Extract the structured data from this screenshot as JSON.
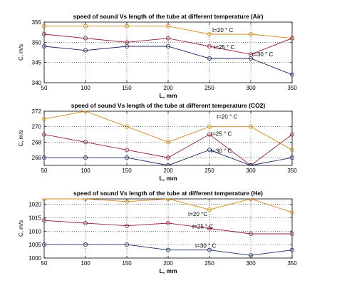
{
  "chart_data": [
    {
      "type": "line",
      "title": "speed of sound Vs  length of the tube at different temperature (Air)",
      "xlabel": "L, mm",
      "ylabel": "C, m/s",
      "x": [
        50,
        100,
        150,
        200,
        250,
        300,
        350
      ],
      "xticks": [
        "50",
        "100",
        "150",
        "200",
        "250",
        "300",
        "350"
      ],
      "xlim": [
        50,
        350
      ],
      "ylim": [
        340,
        355
      ],
      "yticks": [
        340,
        345,
        350,
        355
      ],
      "grid": true,
      "series": [
        {
          "label": "t=20 ° C",
          "color": "#d08a1c",
          "values": [
            354,
            354,
            354,
            354,
            352,
            352,
            351
          ]
        },
        {
          "label": "t=25 ° C",
          "color": "#8e1f34",
          "values": [
            352,
            351,
            350,
            351,
            349,
            347,
            351
          ]
        },
        {
          "label": "t=30 ° C",
          "color": "#1c2a66",
          "values": [
            349,
            348,
            349,
            349,
            346,
            346,
            342
          ]
        }
      ]
    },
    {
      "type": "line",
      "title": "speed of sound Vs  length of the tube at different temperature (CO2)",
      "xlabel": "L, mm",
      "ylabel": "C, m/s",
      "x": [
        50,
        100,
        150,
        200,
        250,
        300,
        350
      ],
      "xticks": [
        "50",
        "100",
        "150",
        "200",
        "250",
        "300",
        "350"
      ],
      "xlim": [
        50,
        350
      ],
      "ylim": [
        265,
        272
      ],
      "yticks": [
        266,
        268,
        270,
        272
      ],
      "grid": true,
      "series": [
        {
          "label": "t=20 ° C",
          "color": "#d08a1c",
          "values": [
            271,
            272,
            270,
            268,
            270,
            270,
            267
          ]
        },
        {
          "label": "t=25 ° C",
          "color": "#8e1f34",
          "values": [
            269,
            268,
            267,
            266,
            269,
            265,
            269
          ]
        },
        {
          "label": "t=30 ° C",
          "color": "#1c2a66",
          "values": [
            266,
            266,
            266,
            265,
            267,
            265,
            266
          ]
        }
      ]
    },
    {
      "type": "line",
      "title": "speed of sound Vs  length of the tube at different temperature (He)",
      "xlabel": "L, mm",
      "ylabel": "C, m/s",
      "x": [
        50,
        100,
        150,
        200,
        250,
        300,
        350
      ],
      "xticks": [
        "50",
        "100",
        "150",
        "200",
        "250",
        "300",
        "350"
      ],
      "xlim": [
        50,
        350
      ],
      "ylim": [
        1000,
        1022
      ],
      "yticks": [
        1000,
        1005,
        1010,
        1015,
        1020
      ],
      "grid": true,
      "series": [
        {
          "label": "t=20 °C",
          "color": "#d08a1c",
          "values": [
            1022,
            1022,
            1021,
            1022,
            1018,
            1022,
            1017
          ]
        },
        {
          "label": "t=25 ° C",
          "color": "#8e1f34",
          "values": [
            1014,
            1013,
            1012,
            1013,
            1011,
            1009,
            1009
          ]
        },
        {
          "label": "t=30 ° C",
          "color": "#1c2a66",
          "values": [
            1005,
            1005,
            1005,
            1003,
            1003,
            1001,
            1003
          ]
        }
      ]
    }
  ]
}
